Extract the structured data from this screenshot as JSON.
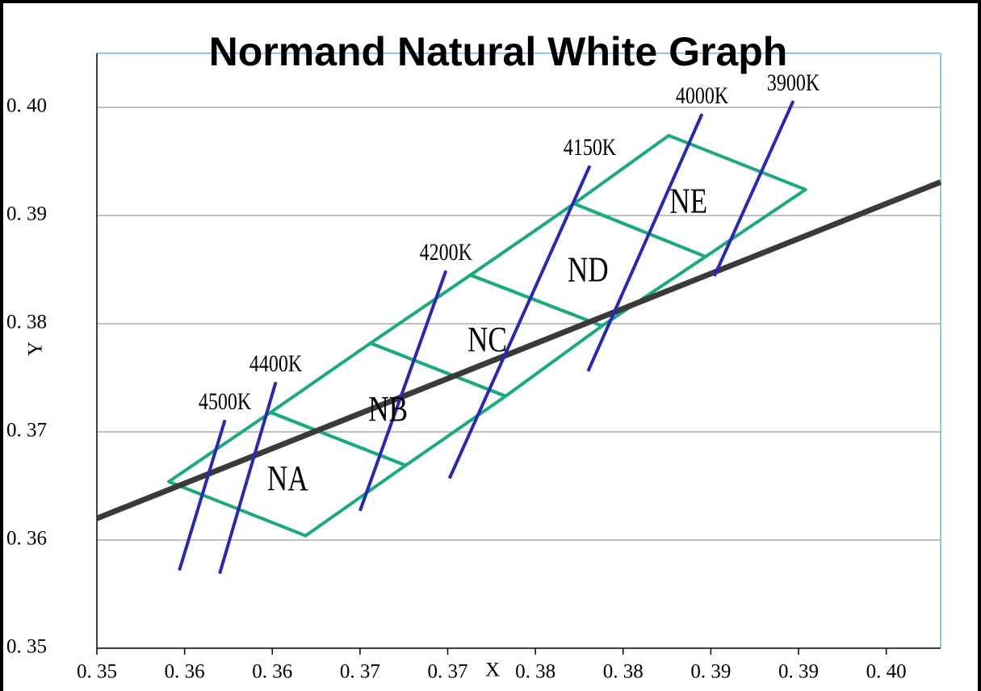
{
  "chart_data": {
    "type": "line",
    "title": "Normand Natural White Graph",
    "x_label": "X",
    "y_label": "Y",
    "xlim": [
      0.35,
      0.3981
    ],
    "ylim": [
      0.35,
      0.405
    ],
    "xticks": [
      {
        "value": 0.35,
        "label": "0. 35"
      },
      {
        "value": 0.355,
        "label": "0. 36"
      },
      {
        "value": 0.36,
        "label": "0. 36"
      },
      {
        "value": 0.365,
        "label": "0. 37"
      },
      {
        "value": 0.37,
        "label": "0. 37"
      },
      {
        "value": 0.375,
        "label": "0. 38"
      },
      {
        "value": 0.38,
        "label": "0. 38"
      },
      {
        "value": 0.385,
        "label": "0. 39"
      },
      {
        "value": 0.39,
        "label": "0. 39"
      },
      {
        "value": 0.395,
        "label": "0. 40"
      }
    ],
    "yticks": [
      {
        "value": 0.35,
        "label": "0. 35"
      },
      {
        "value": 0.36,
        "label": "0. 36"
      },
      {
        "value": 0.37,
        "label": "0. 37"
      },
      {
        "value": 0.38,
        "label": "0. 38"
      },
      {
        "value": 0.39,
        "label": "0. 39"
      },
      {
        "value": 0.4,
        "label": "0. 40"
      }
    ],
    "grid": true,
    "regions": [
      {
        "name": "NA",
        "color": "#1aaa80",
        "x": [
          0.3541,
          0.3599,
          0.3676,
          0.3619
        ],
        "values": [
          0.3654,
          0.3718,
          0.3669,
          0.3604
        ]
      },
      {
        "name": "NB",
        "color": "#1aaa80",
        "x": [
          0.3599,
          0.3656,
          0.3733,
          0.3676
        ],
        "values": [
          0.3718,
          0.3782,
          0.3733,
          0.3669
        ]
      },
      {
        "name": "NC",
        "color": "#1aaa80",
        "x": [
          0.3656,
          0.3713,
          0.3788,
          0.3733
        ],
        "values": [
          0.3782,
          0.3845,
          0.3798,
          0.3733
        ]
      },
      {
        "name": "ND",
        "color": "#1aaa80",
        "x": [
          0.3713,
          0.3772,
          0.3847,
          0.3788
        ],
        "values": [
          0.3845,
          0.3911,
          0.3862,
          0.3798
        ]
      },
      {
        "name": "NE",
        "color": "#1aaa80",
        "x": [
          0.3772,
          0.3826,
          0.3904,
          0.3847
        ],
        "values": [
          0.3911,
          0.3974,
          0.3924,
          0.3862
        ]
      }
    ],
    "locus_line": {
      "color": "#3a3a3a",
      "x": [
        0.35,
        0.3981
      ],
      "values": [
        0.362,
        0.3931
      ]
    },
    "isotherms": [
      {
        "name": "4500K",
        "color": "#2828b4",
        "x": [
          0.3547,
          0.3573
        ],
        "values": [
          0.3572,
          0.3711
        ]
      },
      {
        "name": "4400K",
        "color": "#2828b4",
        "x": [
          0.357,
          0.3602
        ],
        "values": [
          0.3569,
          0.3746
        ]
      },
      {
        "name": "4200K",
        "color": "#2828b4",
        "x": [
          0.365,
          0.3699
        ],
        "values": [
          0.3627,
          0.3849
        ]
      },
      {
        "name": "4150K",
        "color": "#2828b4",
        "x": [
          0.3701,
          0.3781
        ],
        "values": [
          0.3657,
          0.3946
        ]
      },
      {
        "name": "4000K",
        "color": "#2828b4",
        "x": [
          0.378,
          0.3845
        ],
        "values": [
          0.3756,
          0.3994
        ]
      },
      {
        "name": "3900K",
        "color": "#2828b4",
        "x": [
          0.3852,
          0.3897
        ],
        "values": [
          0.3844,
          0.4006
        ]
      }
    ]
  }
}
